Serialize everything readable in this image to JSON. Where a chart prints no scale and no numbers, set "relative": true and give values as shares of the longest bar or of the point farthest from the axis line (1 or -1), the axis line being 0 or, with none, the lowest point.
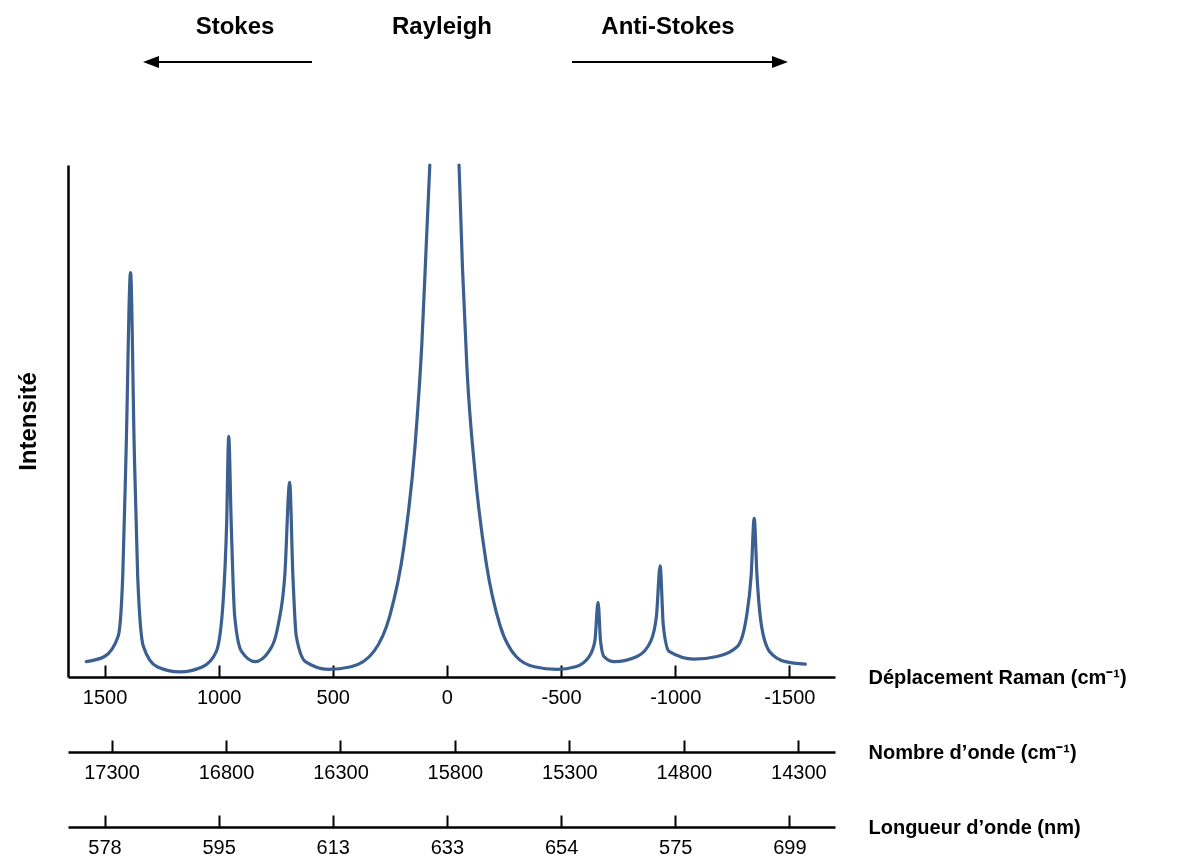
{
  "chart_data": {
    "type": "line",
    "relative": true,
    "xlabel": "Déplacement Raman (cm⁻¹)",
    "x2label": "Nombre d’onde (cm⁻¹)",
    "ylabel": "Intensité",
    "annotations": [
      "Stokes",
      "Rayleigh",
      "Anti-Stokes",
      "Longueur d’onde (nm)",
      "578",
      "595",
      "613",
      "633",
      "654",
      "575",
      "699"
    ],
    "xlim": [
      1660,
      -1700
    ],
    "xticks": [
      1500,
      1000,
      500,
      0,
      -500,
      -1000,
      -1500
    ],
    "x2lim": [
      17490,
      14140
    ],
    "x2ticks": [
      17300,
      16800,
      16300,
      15800,
      15300,
      14800,
      14300
    ],
    "x": [
      1580,
      1500,
      1440,
      1420,
      1405,
      1386,
      1370,
      1355,
      1330,
      1270,
      1170,
      1070,
      1010,
      980,
      965,
      956,
      945,
      930,
      900,
      840,
      780,
      740,
      710,
      689,
      675,
      660,
      620,
      520,
      420,
      320,
      250,
      190,
      140,
      110,
      90,
      75,
      0,
      -53,
      -68,
      -88,
      -123,
      -173,
      -233,
      -303,
      -383,
      -483,
      -563,
      -623,
      -648,
      -662,
      -673,
      -688,
      -733,
      -833,
      -893,
      -918,
      -934,
      -948,
      -973,
      -1083,
      -1183,
      -1273,
      -1313,
      -1333,
      -1346,
      -1358,
      -1378,
      -1413,
      -1483,
      -1570
    ],
    "series": [
      {
        "color": "#3b5f8f",
        "values": [
          0.03,
          0.04,
          0.08,
          0.2,
          0.45,
          0.79,
          0.45,
          0.2,
          0.06,
          0.02,
          0.01,
          0.02,
          0.05,
          0.15,
          0.3,
          0.47,
          0.3,
          0.12,
          0.05,
          0.03,
          0.05,
          0.1,
          0.2,
          0.38,
          0.2,
          0.08,
          0.03,
          0.015,
          0.02,
          0.05,
          0.12,
          0.25,
          0.45,
          0.65,
          0.85,
          1,
          null,
          1,
          0.8,
          0.6,
          0.4,
          0.22,
          0.1,
          0.04,
          0.02,
          0.015,
          0.02,
          0.04,
          0.07,
          0.146,
          0.07,
          0.04,
          0.03,
          0.04,
          0.07,
          0.12,
          0.217,
          0.1,
          0.05,
          0.035,
          0.04,
          0.06,
          0.12,
          0.2,
          0.31,
          0.2,
          0.1,
          0.05,
          0.03,
          0.025
        ]
      }
    ]
  }
}
